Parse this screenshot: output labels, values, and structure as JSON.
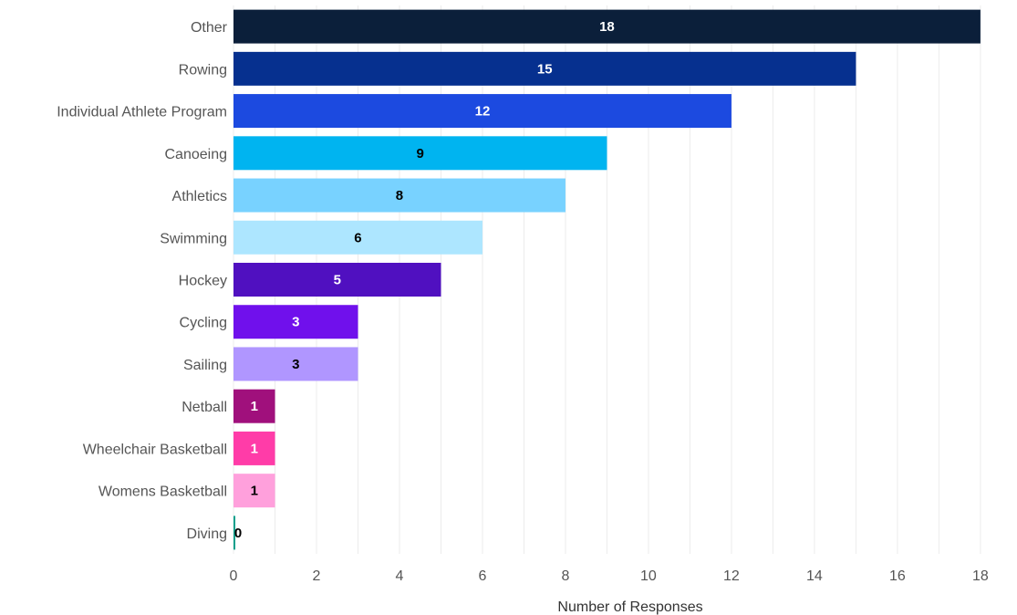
{
  "chart_data": {
    "type": "bar",
    "orientation": "horizontal",
    "categories": [
      "Other",
      "Rowing",
      "Individual Athlete Program",
      "Canoeing",
      "Athletics",
      "Swimming",
      "Hockey",
      "Cycling",
      "Sailing",
      "Netball",
      "Wheelchair Basketball",
      "Womens Basketball",
      "Diving"
    ],
    "values": [
      18,
      15,
      12,
      9,
      8,
      6,
      5,
      3,
      3,
      1,
      1,
      1,
      0
    ],
    "value_labels": [
      "18",
      "15",
      "12",
      "9",
      "8",
      "6",
      "5",
      "3",
      "3",
      "1",
      "1",
      "1",
      "0"
    ],
    "colors": [
      "#0b1f3a",
      "#06308f",
      "#1c4ae0",
      "#00b4f0",
      "#78d2ff",
      "#ade6ff",
      "#5010c0",
      "#7010ec",
      "#b096ff",
      "#a0107c",
      "#ff3ca8",
      "#ffa0dc",
      "#0aa08c"
    ],
    "label_colors": [
      "#ffffff",
      "#ffffff",
      "#ffffff",
      "#000000",
      "#000000",
      "#000000",
      "#ffffff",
      "#ffffff",
      "#000000",
      "#ffffff",
      "#ffffff",
      "#000000",
      "#000000"
    ],
    "title": "",
    "xlabel": "Number of Responses",
    "ylabel": "",
    "xlim": [
      0,
      18.2
    ],
    "xticks": [
      0,
      2,
      4,
      6,
      8,
      10,
      12,
      14,
      16,
      18
    ],
    "xtick_labels": [
      "0",
      "2",
      "4",
      "6",
      "8",
      "10",
      "12",
      "14",
      "16",
      "18"
    ],
    "grid": true,
    "legend": "none"
  }
}
